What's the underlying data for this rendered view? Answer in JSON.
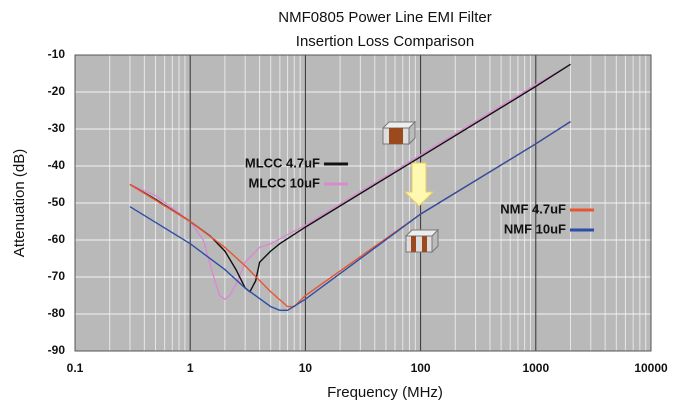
{
  "chart_data": {
    "type": "line",
    "title": "NMF0805 Power Line EMI Filter",
    "subtitle": "Insertion Loss Comparison",
    "x_label": "Frequency (MHz)",
    "y_label": "Attenuation (dB)",
    "x_scale": "log",
    "xlim": [
      0.1,
      10000
    ],
    "xticks": [
      0.1,
      1,
      10,
      100,
      1000,
      10000
    ],
    "ylim": [
      -90,
      -10
    ],
    "yticks": [
      -90,
      -80,
      -70,
      -60,
      -50,
      -40,
      -30,
      -20,
      -10
    ],
    "grid": true,
    "series": [
      {
        "name": "MLCC 4.7uF",
        "color": "#111111",
        "x": [
          0.3,
          0.5,
          1,
          1.5,
          2,
          2.5,
          3,
          3.3,
          3.7,
          4,
          5,
          6,
          10,
          100,
          1000,
          2000
        ],
        "values": [
          -45,
          -49,
          -55,
          -59,
          -63,
          -68,
          -73,
          -74,
          -71,
          -66,
          -63,
          -61,
          -56.5,
          -37.5,
          -18.5,
          -12.5
        ]
      },
      {
        "name": "MLCC 10uF",
        "color": "#d98bd0",
        "x": [
          0.3,
          0.5,
          1,
          1.3,
          1.6,
          1.8,
          2,
          2.2,
          2.5,
          3,
          4,
          5,
          10,
          100,
          1000,
          2000
        ],
        "values": [
          -45,
          -48,
          -55,
          -60,
          -70,
          -75,
          -76,
          -75,
          -72,
          -66,
          -62,
          -61,
          -56,
          -37,
          -18,
          -12.5
        ]
      },
      {
        "name": "NMF 4.7uF",
        "color": "#e8552e",
        "x": [
          0.3,
          1,
          2,
          3,
          5,
          7,
          8,
          10,
          100,
          1000,
          2000
        ],
        "values": [
          -45,
          -55,
          -62,
          -67,
          -74,
          -78,
          -78,
          -75,
          -53,
          -34,
          -28
        ]
      },
      {
        "name": "NMF 10uF",
        "color": "#2b4fa8",
        "x": [
          0.3,
          1,
          2,
          3,
          5,
          6,
          7,
          10,
          100,
          1000,
          2000
        ],
        "values": [
          -51,
          -61,
          -68,
          -73,
          -78,
          -79,
          -79,
          -76,
          -53,
          -34,
          -28
        ]
      }
    ]
  }
}
